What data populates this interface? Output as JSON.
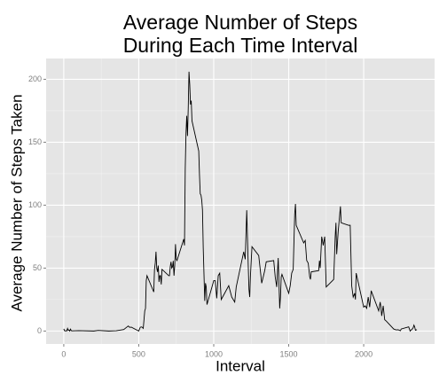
{
  "chart_data": {
    "type": "line",
    "title": "Average Number of Steps\nDuring Each Time Interval",
    "xlabel": "Interval",
    "ylabel": "Average Number of Steps Taken",
    "x": [
      0,
      5,
      10,
      15,
      20,
      25,
      30,
      35,
      40,
      45,
      50,
      55,
      100,
      200,
      230,
      300,
      350,
      400,
      430,
      440,
      450,
      500,
      510,
      520,
      530,
      540,
      545,
      550,
      555,
      600,
      605,
      610,
      615,
      620,
      625,
      630,
      635,
      640,
      645,
      650,
      655,
      700,
      705,
      710,
      715,
      720,
      725,
      730,
      735,
      740,
      745,
      750,
      755,
      800,
      805,
      810,
      815,
      820,
      825,
      830,
      835,
      840,
      845,
      850,
      855,
      900,
      905,
      910,
      915,
      920,
      925,
      930,
      935,
      940,
      945,
      950,
      955,
      1000,
      1010,
      1020,
      1030,
      1040,
      1050,
      1100,
      1120,
      1140,
      1150,
      1200,
      1210,
      1220,
      1230,
      1235,
      1240,
      1245,
      1255,
      1300,
      1320,
      1340,
      1350,
      1400,
      1410,
      1420,
      1430,
      1440,
      1445,
      1450,
      1455,
      1500,
      1510,
      1520,
      1530,
      1540,
      1545,
      1550,
      1600,
      1610,
      1620,
      1630,
      1640,
      1645,
      1650,
      1700,
      1705,
      1710,
      1720,
      1725,
      1730,
      1740,
      1750,
      1800,
      1805,
      1810,
      1815,
      1820,
      1830,
      1845,
      1850,
      1900,
      1910,
      1920,
      1930,
      1940,
      1945,
      1950,
      2000,
      2010,
      2020,
      2030,
      2040,
      2050,
      2100,
      2110,
      2115,
      2120,
      2130,
      2140,
      2150,
      2200,
      2215,
      2230,
      2245,
      2250,
      2300,
      2310,
      2315,
      2320,
      2330,
      2335,
      2340,
      2345,
      2355
    ],
    "values": [
      1.7,
      0.3,
      0.1,
      0.2,
      0.1,
      2.1,
      0.5,
      0.9,
      0,
      1.5,
      0.3,
      0.1,
      0.3,
      0,
      0.5,
      0,
      0.2,
      1.2,
      4,
      2.9,
      3.1,
      0,
      3,
      3.3,
      2.1,
      16,
      18,
      40,
      44,
      31,
      49,
      54,
      63,
      50,
      47,
      52,
      39,
      44,
      44,
      37,
      49,
      44,
      44,
      51,
      55,
      50,
      51,
      55.7,
      44,
      52,
      69,
      57,
      56,
      73,
      68,
      129,
      157,
      171,
      155,
      177,
      206,
      196,
      180,
      183,
      167,
      143,
      124,
      109,
      108,
      104,
      96,
      66,
      45,
      24,
      38,
      35,
      21,
      40,
      40,
      26,
      44,
      46,
      25,
      36,
      27,
      23,
      35,
      63,
      57,
      96,
      52,
      33,
      27,
      44,
      67,
      60,
      38,
      48,
      55,
      56,
      43,
      35,
      58,
      18,
      27,
      43,
      45,
      30,
      36,
      46,
      49,
      93,
      101,
      84,
      70,
      72,
      56,
      54,
      43,
      41,
      47,
      48,
      56,
      50,
      75,
      72,
      68,
      75,
      35,
      41,
      58,
      75,
      86,
      61,
      79,
      99,
      86,
      84,
      84,
      36,
      27,
      30,
      25,
      46,
      19,
      20,
      18,
      27,
      19,
      32,
      16,
      23,
      19,
      12,
      20,
      9,
      8,
      1.6,
      0.9,
      1,
      0.2,
      1.6,
      3.3,
      0,
      0.8,
      1,
      2.6,
      4.7,
      3.3,
      0.6,
      1.1
    ],
    "color": "#000000",
    "xlim": [
      -117.75,
      2472.75
    ],
    "xticks": [
      0,
      500,
      1000,
      1500,
      2000
    ],
    "ylim": [
      -10.3,
      216.5
    ],
    "yticks": [
      0,
      50,
      100,
      150,
      200
    ],
    "grid": true
  }
}
